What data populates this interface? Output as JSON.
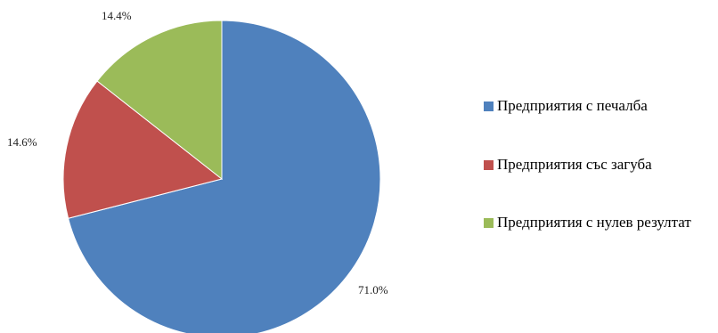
{
  "chart_data": {
    "type": "pie",
    "title": "",
    "start_angle_deg": 90,
    "direction": "clockwise",
    "legend_position": "right",
    "slices": [
      {
        "name": "Предприятия с печалба",
        "value": 71.0,
        "label": "71.0%",
        "color": "#4F81BD"
      },
      {
        "name": "Предприятия със загуба",
        "value": 14.6,
        "label": "14.6%",
        "color": "#C0504D"
      },
      {
        "name": "Предприятия с нулев резултат",
        "value": 14.4,
        "label": "14.4%",
        "color": "#9BBB59"
      }
    ]
  }
}
